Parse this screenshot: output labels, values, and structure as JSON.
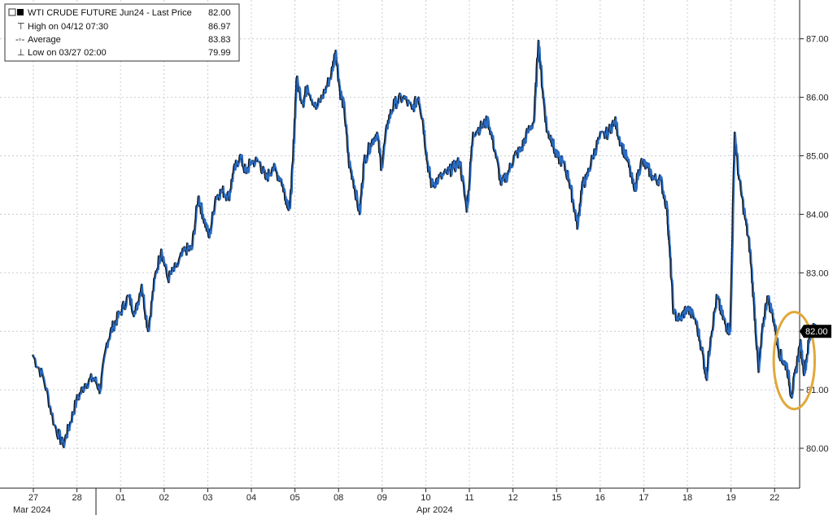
{
  "chart_data": {
    "type": "line",
    "legend": {
      "title": "WTI CRUDE FUTURE Jun24 - Last Price",
      "title_value": "82.00",
      "rows": [
        {
          "label": "High on 04/12 07:30",
          "value": "86.97"
        },
        {
          "label": "Average",
          "value": "83.83"
        },
        {
          "label": "Low on 03/27 02:00",
          "value": "79.99"
        }
      ],
      "placement": "top-left"
    },
    "ylim": [
      79.5,
      87.6
    ],
    "yticks": [
      "80.00",
      "81.00",
      "82.00",
      "83.00",
      "84.00",
      "85.00",
      "86.00",
      "87.00"
    ],
    "last_price_label": "82.00",
    "last_price": 82.0,
    "grid": true,
    "x_tick_labels": [
      "27",
      "28",
      "01",
      "02",
      "03",
      "04",
      "05",
      "08",
      "09",
      "10",
      "11",
      "12",
      "15",
      "16",
      "17",
      "18",
      "19",
      "22"
    ],
    "month_labels": [
      "Mar 2024",
      "Apr 2024"
    ],
    "series": [
      {
        "color": "#2a6cc4",
        "shadow_color": "#111111",
        "points": [
          [
            0.0,
            81.6
          ],
          [
            0.25,
            81.2
          ],
          [
            0.5,
            80.4
          ],
          [
            0.7,
            80.05
          ],
          [
            0.85,
            80.4
          ],
          [
            1.0,
            80.8
          ],
          [
            1.2,
            81.1
          ],
          [
            1.4,
            81.2
          ],
          [
            1.55,
            81.0
          ],
          [
            1.7,
            81.8
          ],
          [
            1.85,
            82.1
          ],
          [
            2.0,
            82.3
          ],
          [
            2.2,
            82.6
          ],
          [
            2.35,
            82.3
          ],
          [
            2.5,
            82.8
          ],
          [
            2.65,
            82.0
          ],
          [
            2.8,
            82.9
          ],
          [
            2.95,
            83.4
          ],
          [
            3.1,
            82.9
          ],
          [
            3.3,
            83.1
          ],
          [
            3.5,
            83.4
          ],
          [
            3.65,
            83.4
          ],
          [
            3.8,
            84.3
          ],
          [
            3.9,
            84.0
          ],
          [
            4.05,
            83.6
          ],
          [
            4.2,
            84.3
          ],
          [
            4.35,
            84.4
          ],
          [
            4.5,
            84.3
          ],
          [
            4.6,
            84.7
          ],
          [
            4.75,
            85.0
          ],
          [
            4.9,
            84.7
          ],
          [
            5.0,
            84.9
          ],
          [
            5.2,
            84.9
          ],
          [
            5.35,
            84.6
          ],
          [
            5.5,
            84.8
          ],
          [
            5.7,
            84.6
          ],
          [
            5.8,
            84.3
          ],
          [
            5.9,
            84.1
          ],
          [
            5.97,
            84.9
          ],
          [
            6.05,
            86.3
          ],
          [
            6.2,
            85.9
          ],
          [
            6.3,
            86.2
          ],
          [
            6.5,
            85.8
          ],
          [
            6.7,
            86.1
          ],
          [
            6.85,
            86.4
          ],
          [
            6.95,
            86.8
          ],
          [
            7.05,
            86.1
          ],
          [
            7.15,
            85.8
          ],
          [
            7.25,
            84.9
          ],
          [
            7.35,
            84.6
          ],
          [
            7.5,
            84.0
          ],
          [
            7.6,
            84.9
          ],
          [
            7.75,
            85.2
          ],
          [
            7.9,
            85.4
          ],
          [
            8.0,
            84.8
          ],
          [
            8.15,
            85.6
          ],
          [
            8.3,
            85.9
          ],
          [
            8.5,
            86.0
          ],
          [
            8.7,
            85.8
          ],
          [
            8.85,
            86.0
          ],
          [
            8.95,
            85.6
          ],
          [
            9.05,
            84.9
          ],
          [
            9.15,
            84.5
          ],
          [
            9.3,
            84.6
          ],
          [
            9.5,
            84.7
          ],
          [
            9.65,
            84.8
          ],
          [
            9.8,
            84.9
          ],
          [
            9.95,
            84.1
          ],
          [
            10.0,
            84.4
          ],
          [
            10.1,
            85.4
          ],
          [
            10.3,
            85.5
          ],
          [
            10.45,
            85.6
          ],
          [
            10.6,
            85.1
          ],
          [
            10.75,
            84.5
          ],
          [
            10.9,
            84.7
          ],
          [
            11.05,
            85.0
          ],
          [
            11.2,
            85.1
          ],
          [
            11.35,
            85.4
          ],
          [
            11.5,
            85.6
          ],
          [
            11.6,
            86.97
          ],
          [
            11.7,
            86.1
          ],
          [
            11.8,
            85.4
          ],
          [
            11.9,
            85.3
          ],
          [
            12.0,
            85.0
          ],
          [
            12.15,
            84.9
          ],
          [
            12.3,
            84.6
          ],
          [
            12.4,
            84.2
          ],
          [
            12.5,
            83.8
          ],
          [
            12.6,
            84.5
          ],
          [
            12.7,
            84.6
          ],
          [
            12.85,
            85.0
          ],
          [
            13.0,
            85.3
          ],
          [
            13.2,
            85.4
          ],
          [
            13.35,
            85.6
          ],
          [
            13.5,
            85.2
          ],
          [
            13.65,
            84.9
          ],
          [
            13.8,
            84.4
          ],
          [
            13.95,
            84.9
          ],
          [
            14.1,
            84.8
          ],
          [
            14.25,
            84.6
          ],
          [
            14.4,
            84.6
          ],
          [
            14.55,
            84.1
          ],
          [
            14.6,
            83.5
          ],
          [
            14.7,
            82.3
          ],
          [
            14.85,
            82.2
          ],
          [
            15.0,
            82.4
          ],
          [
            15.2,
            82.2
          ],
          [
            15.35,
            81.7
          ],
          [
            15.45,
            81.2
          ],
          [
            15.55,
            81.9
          ],
          [
            15.7,
            82.6
          ],
          [
            15.8,
            82.3
          ],
          [
            15.9,
            82.1
          ],
          [
            16.0,
            82.0
          ],
          [
            16.1,
            85.4
          ],
          [
            16.2,
            84.6
          ],
          [
            16.35,
            83.9
          ],
          [
            16.45,
            83.4
          ],
          [
            16.55,
            82.4
          ],
          [
            16.65,
            81.3
          ],
          [
            16.75,
            82.1
          ],
          [
            16.85,
            82.6
          ],
          [
            17.0,
            82.2
          ],
          [
            17.1,
            81.7
          ],
          [
            17.2,
            81.5
          ],
          [
            17.3,
            81.4
          ],
          [
            17.4,
            80.9
          ],
          [
            17.5,
            81.3
          ],
          [
            17.6,
            81.8
          ],
          [
            17.7,
            81.3
          ],
          [
            17.8,
            81.8
          ],
          [
            17.9,
            82.1
          ],
          [
            17.97,
            82.0
          ]
        ]
      }
    ],
    "highlight": {
      "shape": "ellipse",
      "color": "#e1a83a",
      "x_center": 17.45,
      "y_center": 81.5,
      "x_radius": 0.47,
      "y_radius": 0.83
    }
  }
}
